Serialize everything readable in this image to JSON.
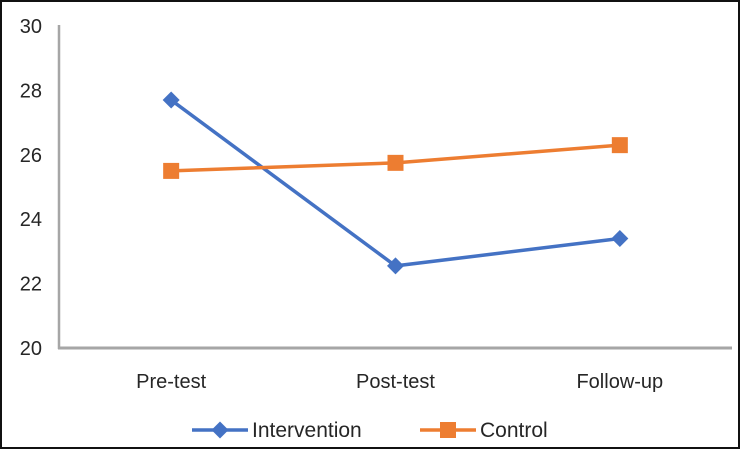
{
  "chart_data": {
    "type": "line",
    "title": "",
    "xlabel": "",
    "ylabel": "",
    "categories": [
      "Pre-test",
      "Post-test",
      "Follow-up"
    ],
    "series": [
      {
        "name": "Intervention",
        "values": [
          27.7,
          22.55,
          23.4
        ],
        "color": "#4472C4",
        "marker": "diamond"
      },
      {
        "name": "Control",
        "values": [
          25.5,
          25.75,
          26.3
        ],
        "color": "#ED7D31",
        "marker": "square"
      }
    ],
    "ylim": [
      20,
      30
    ],
    "yticks": [
      20,
      22,
      24,
      26,
      28,
      30
    ],
    "grid": false,
    "legend_position": "bottom",
    "colors": {
      "axis": "#A6A6A6",
      "text": "#262626",
      "frame_border": "#111111",
      "background": "#FFFFFF"
    }
  }
}
